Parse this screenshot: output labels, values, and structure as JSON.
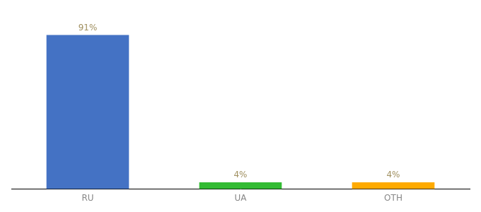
{
  "chart_data": {
    "type": "bar",
    "categories": [
      "RU",
      "UA",
      "OTH"
    ],
    "values": [
      91,
      4,
      4
    ],
    "value_labels": [
      "91%",
      "4%",
      "4%"
    ],
    "colors": [
      "#4472c4",
      "#33bb33",
      "#ffaa00"
    ],
    "ylim": [
      0,
      100
    ],
    "grid": false,
    "data_labels": true,
    "tick_labels": "x"
  }
}
